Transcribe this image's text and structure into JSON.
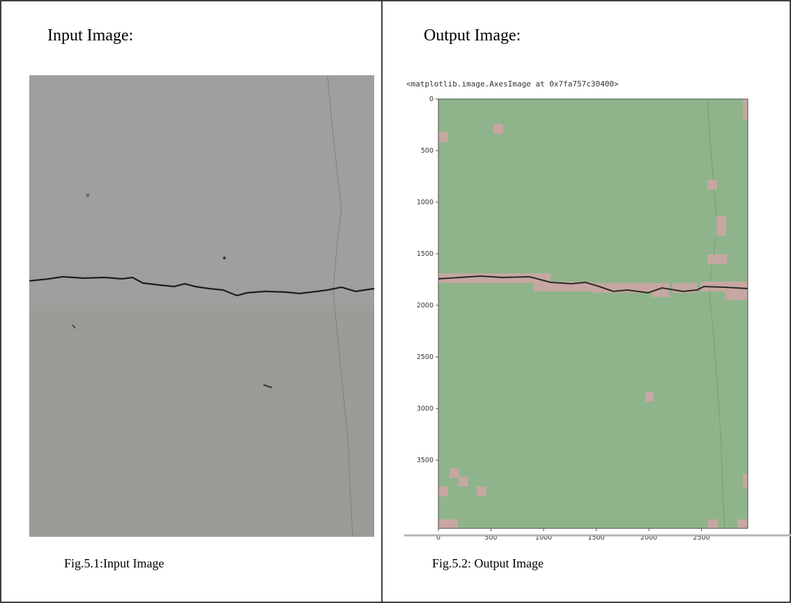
{
  "input_cell": {
    "heading": "Input Image:",
    "caption": "Fig.5.1:Input Image"
  },
  "output_cell": {
    "heading": "Output Image:",
    "console_text": "<matplotlib.image.AxesImage at 0x7fa757c30400>",
    "yticks": [
      0,
      500,
      1000,
      1500,
      2000,
      2500,
      3000,
      3500
    ],
    "xticks": [
      0,
      500,
      1000,
      1500,
      2000,
      2500
    ],
    "caption": "Fig.5.2: Output Image"
  }
}
